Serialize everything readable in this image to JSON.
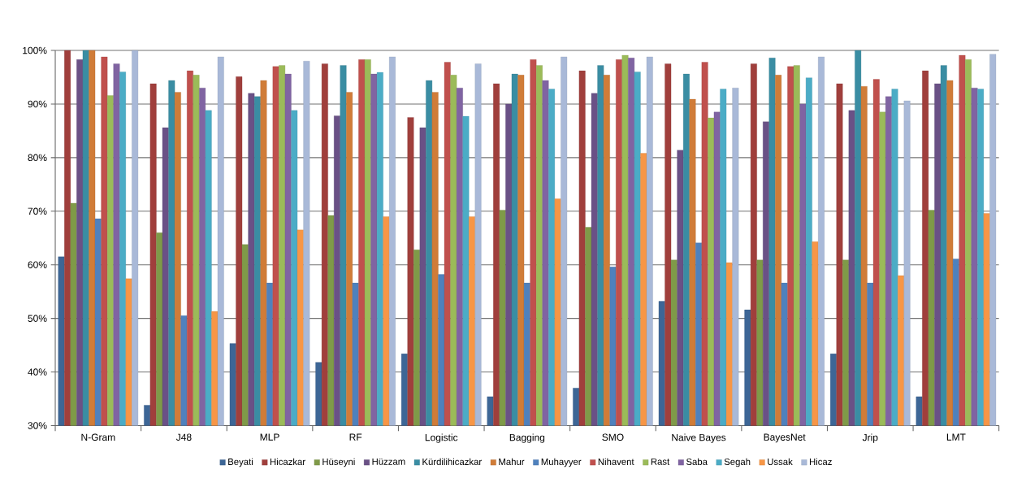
{
  "chart_data": {
    "type": "bar",
    "categories": [
      "N-Gram",
      "J48",
      "MLP",
      "RF",
      "Logistic",
      "Bagging",
      "SMO",
      "Naive Bayes",
      "BayesNet",
      "Jrip",
      "LMT"
    ],
    "series": [
      {
        "name": "Beyati",
        "color": "#3d6696",
        "values": [
          61.5,
          33.8,
          45.3,
          41.8,
          43.4,
          35.4,
          37,
          53.2,
          51.6,
          43.4,
          35.4
        ]
      },
      {
        "name": "Hicazkar",
        "color": "#a03f3c",
        "values": [
          100,
          93.8,
          95.1,
          97.5,
          87.5,
          93.8,
          96.2,
          97.5,
          97.5,
          93.8,
          96.2
        ]
      },
      {
        "name": "Hüseyni",
        "color": "#7f9a48",
        "values": [
          71.5,
          66,
          63.8,
          69.2,
          62.8,
          70.2,
          67,
          60.9,
          60.9,
          60.9,
          70.2
        ]
      },
      {
        "name": "Hüzzam",
        "color": "#6a5186",
        "values": [
          98.3,
          85.6,
          92,
          87.8,
          85.6,
          90,
          92,
          81.4,
          86.7,
          88.8,
          93.8
        ]
      },
      {
        "name": "Kürdilihicazkar",
        "color": "#3a8da3",
        "values": [
          100,
          94.4,
          91.4,
          97.2,
          94.4,
          95.6,
          97.2,
          95.6,
          98.6,
          100,
          97.2
        ]
      },
      {
        "name": "Mahur",
        "color": "#d07c38",
        "values": [
          100,
          92.2,
          94.4,
          92.2,
          92.2,
          95.4,
          95.4,
          90.9,
          95.4,
          93.3,
          94.4
        ]
      },
      {
        "name": "Muhayyer",
        "color": "#4f81bd",
        "values": [
          68.6,
          50.5,
          56.6,
          56.6,
          58.2,
          56.6,
          59.6,
          64.1,
          56.6,
          56.6,
          61.1
        ]
      },
      {
        "name": "Nihavent",
        "color": "#c0504d",
        "values": [
          98.8,
          96.2,
          97,
          98.3,
          97.8,
          98.3,
          98.3,
          97.8,
          97,
          94.6,
          99.1
        ]
      },
      {
        "name": "Rast",
        "color": "#9bbb59",
        "values": [
          91.6,
          95.4,
          97.2,
          98.3,
          95.4,
          97.2,
          99.1,
          87.4,
          97.2,
          88.5,
          98.3
        ]
      },
      {
        "name": "Saba",
        "color": "#8064a2",
        "values": [
          97.5,
          93,
          95.6,
          95.6,
          93,
          94.4,
          98.6,
          88.5,
          90,
          91.4,
          93
        ]
      },
      {
        "name": "Segah",
        "color": "#4bacc6",
        "values": [
          96,
          88.8,
          88.8,
          95.9,
          87.7,
          92.8,
          96,
          92.8,
          94.9,
          92.8,
          92.8
        ]
      },
      {
        "name": "Ussak",
        "color": "#f79646",
        "values": [
          57.4,
          51.3,
          66.5,
          69,
          69,
          72.3,
          80.8,
          60.4,
          64.3,
          58,
          69.6
        ]
      },
      {
        "name": "Hicaz",
        "color": "#a9b9d8",
        "values": [
          100,
          98.8,
          98,
          98.8,
          97.5,
          98.8,
          98.8,
          93,
          98.8,
          90.6,
          99.3
        ]
      }
    ],
    "ylim": [
      30,
      100
    ],
    "yticks": [
      {
        "value": 30,
        "label": "30%"
      },
      {
        "value": 40,
        "label": "40%"
      },
      {
        "value": 50,
        "label": "50%"
      },
      {
        "value": 60,
        "label": "60%"
      },
      {
        "value": 70,
        "label": "70%"
      },
      {
        "value": 80,
        "label": "80%"
      },
      {
        "value": 90,
        "label": "90%"
      },
      {
        "value": 100,
        "label": "100%"
      }
    ],
    "grid": "y",
    "legend": "bottom"
  }
}
